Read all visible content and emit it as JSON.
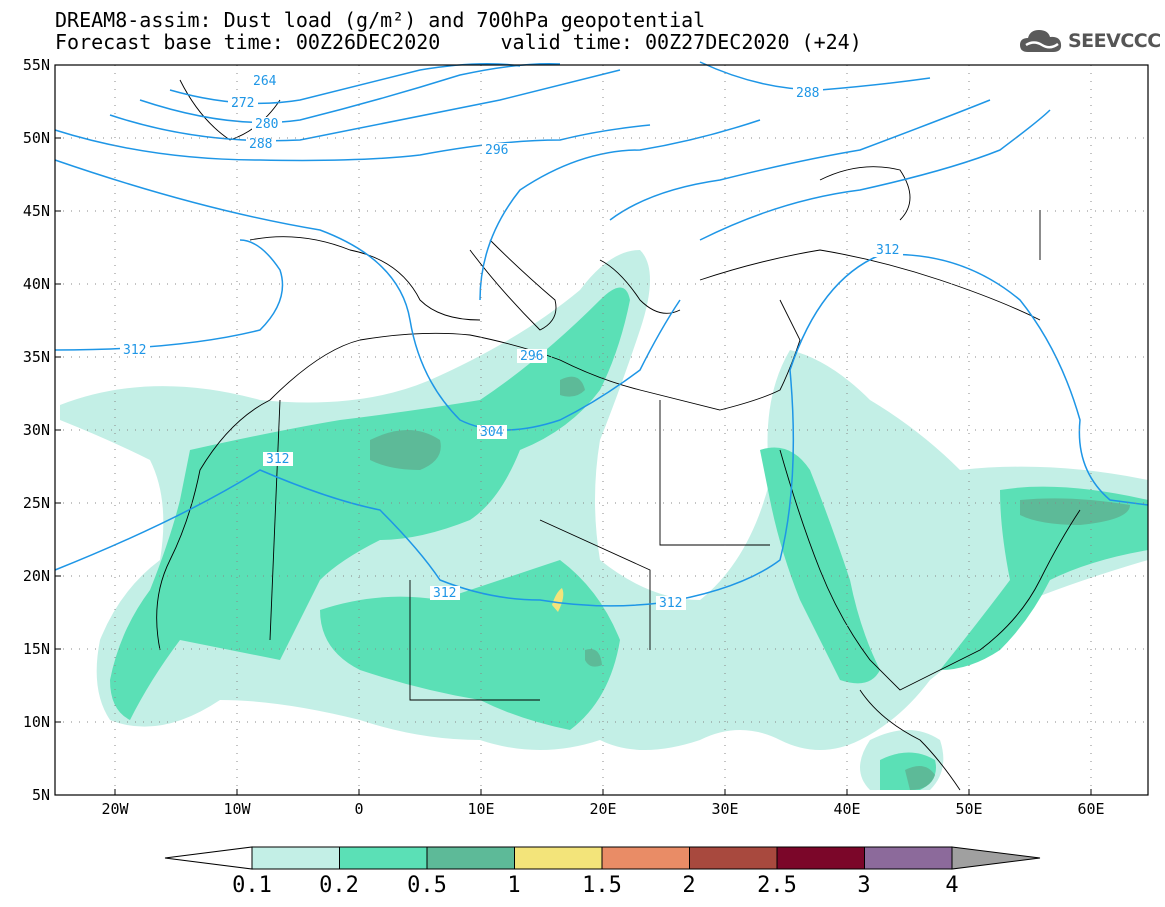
{
  "title_line1": "DREAM8-assim: Dust load (g/m²) and 700hPa geopotential",
  "title_line2": "Forecast base time: 00Z26DEC2020     valid time: 00Z27DEC2020 (+24)",
  "logo_text": "SEEVCCC",
  "lat_labels": [
    "55N",
    "50N",
    "45N",
    "40N",
    "35N",
    "30N",
    "25N",
    "20N",
    "15N",
    "10N",
    "5N"
  ],
  "lon_labels": [
    "20W",
    "10W",
    "0",
    "10E",
    "20E",
    "30E",
    "40E",
    "50E",
    "60E"
  ],
  "contour_labels": [
    "264",
    "272",
    "280",
    "288",
    "296",
    "288",
    "312",
    "312",
    "296",
    "304",
    "312",
    "312",
    "312"
  ],
  "colorbar": {
    "labels": [
      "0.1",
      "0.2",
      "0.5",
      "1",
      "1.5",
      "2",
      "2.5",
      "3",
      "4"
    ],
    "colors": [
      "#c3efe6",
      "#5be0b6",
      "#5dba98",
      "#f3e47a",
      "#e98c66",
      "#a8493e",
      "#7b0629",
      "#8c6a9b"
    ],
    "under_color": "#ffffff",
    "over_color": "#a0a0a0"
  },
  "contour_color": "#1e96e6",
  "dust_colors": {
    "low": "#c3efe6",
    "mid": "#5be0b6",
    "high": "#5dba98",
    "peak": "#f3e47a"
  }
}
